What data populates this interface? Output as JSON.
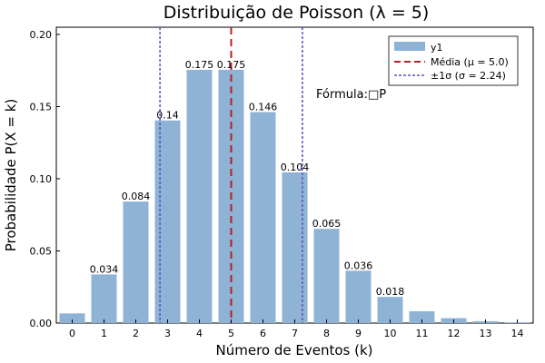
{
  "chart_data": {
    "type": "bar",
    "title": "Distribuição de Poisson (λ = 5)",
    "xlabel": "Número de Eventos (k)",
    "ylabel": "Probabilidade P(X = k)",
    "categories": [
      0,
      1,
      2,
      3,
      4,
      5,
      6,
      7,
      8,
      9,
      10,
      11,
      12,
      13,
      14
    ],
    "values": [
      0.0067,
      0.0337,
      0.0842,
      0.1404,
      0.1755,
      0.1755,
      0.1462,
      0.1044,
      0.0653,
      0.0363,
      0.0181,
      0.0082,
      0.0034,
      0.0013,
      0.0005
    ],
    "data_labels": [
      "",
      "0.034",
      "0.084",
      "0.14",
      "0.175",
      "0.175",
      "0.146",
      "0.104",
      "0.065",
      "0.036",
      "0.018",
      "",
      "",
      "",
      ""
    ],
    "xlim": [
      -0.5,
      14.5
    ],
    "ylim": [
      0,
      0.205
    ],
    "xticks": [
      "0",
      "1",
      "2",
      "3",
      "4",
      "5",
      "6",
      "7",
      "8",
      "9",
      "10",
      "11",
      "12",
      "13",
      "14"
    ],
    "yticks": [
      0.0,
      0.05,
      0.1,
      0.15,
      0.2
    ],
    "ytick_labels": [
      "0.00",
      "0.05",
      "0.10",
      "0.15",
      "0.20"
    ],
    "bar_color": "#8fb3d4",
    "vlines": [
      {
        "name": "Média (μ = 5.0)",
        "x": 5.0,
        "color": "#b22222",
        "style": "dashed"
      },
      {
        "name": "±1σ (σ = 2.24)",
        "x": 2.76,
        "color": "#5a4fc8",
        "style": "dotted"
      },
      {
        "name": "±1σ (σ = 2.24)",
        "x": 7.24,
        "color": "#5a4fc8",
        "style": "dotted"
      }
    ],
    "legend": {
      "position": "top-right",
      "entries": [
        {
          "label": "y1",
          "kind": "bar",
          "color": "#8fb3d4"
        },
        {
          "label": "Média (μ = 5.0)",
          "kind": "dashed",
          "color": "#b22222"
        },
        {
          "label": "±1σ (σ = 2.24)",
          "kind": "dotted",
          "color": "#5a4fc8"
        }
      ]
    },
    "annotation": {
      "text": "Fórmula:□P",
      "x": 7.7,
      "y": 0.157
    }
  }
}
